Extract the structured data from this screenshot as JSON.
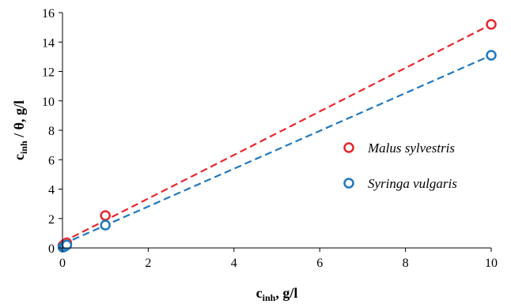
{
  "chart_data": {
    "type": "scatter",
    "title": "",
    "xlabel": {
      "main": "c",
      "sub": "inh",
      "rest": ", g/l"
    },
    "ylabel": {
      "main": "c",
      "sub": "inh",
      "rest": " / θ, g/l"
    },
    "xlim": [
      0,
      10
    ],
    "ylim": [
      0,
      16
    ],
    "xticks": [
      0,
      2,
      4,
      6,
      8,
      10
    ],
    "yticks": [
      0,
      2,
      4,
      6,
      8,
      10,
      12,
      14,
      16
    ],
    "grid": false,
    "legend_position": "right",
    "series": [
      {
        "name": "Malus sylvestris",
        "color": "#e8262b",
        "marker": "open-circle",
        "points": [
          [
            0.01,
            0.15
          ],
          [
            0.05,
            0.25
          ],
          [
            0.1,
            0.35
          ],
          [
            1,
            2.2
          ],
          [
            10,
            15.2
          ]
        ],
        "trendline": {
          "x": [
            0,
            10
          ],
          "y": [
            0.4,
            15.2
          ]
        }
      },
      {
        "name": "Syringa vulgaris",
        "color": "#1f78c1",
        "marker": "open-circle",
        "points": [
          [
            0.01,
            0.05
          ],
          [
            0.05,
            0.1
          ],
          [
            0.1,
            0.2
          ],
          [
            1,
            1.55
          ],
          [
            10,
            13.1
          ]
        ],
        "trendline": {
          "x": [
            0,
            10
          ],
          "y": [
            0.25,
            13.1
          ]
        }
      }
    ]
  }
}
